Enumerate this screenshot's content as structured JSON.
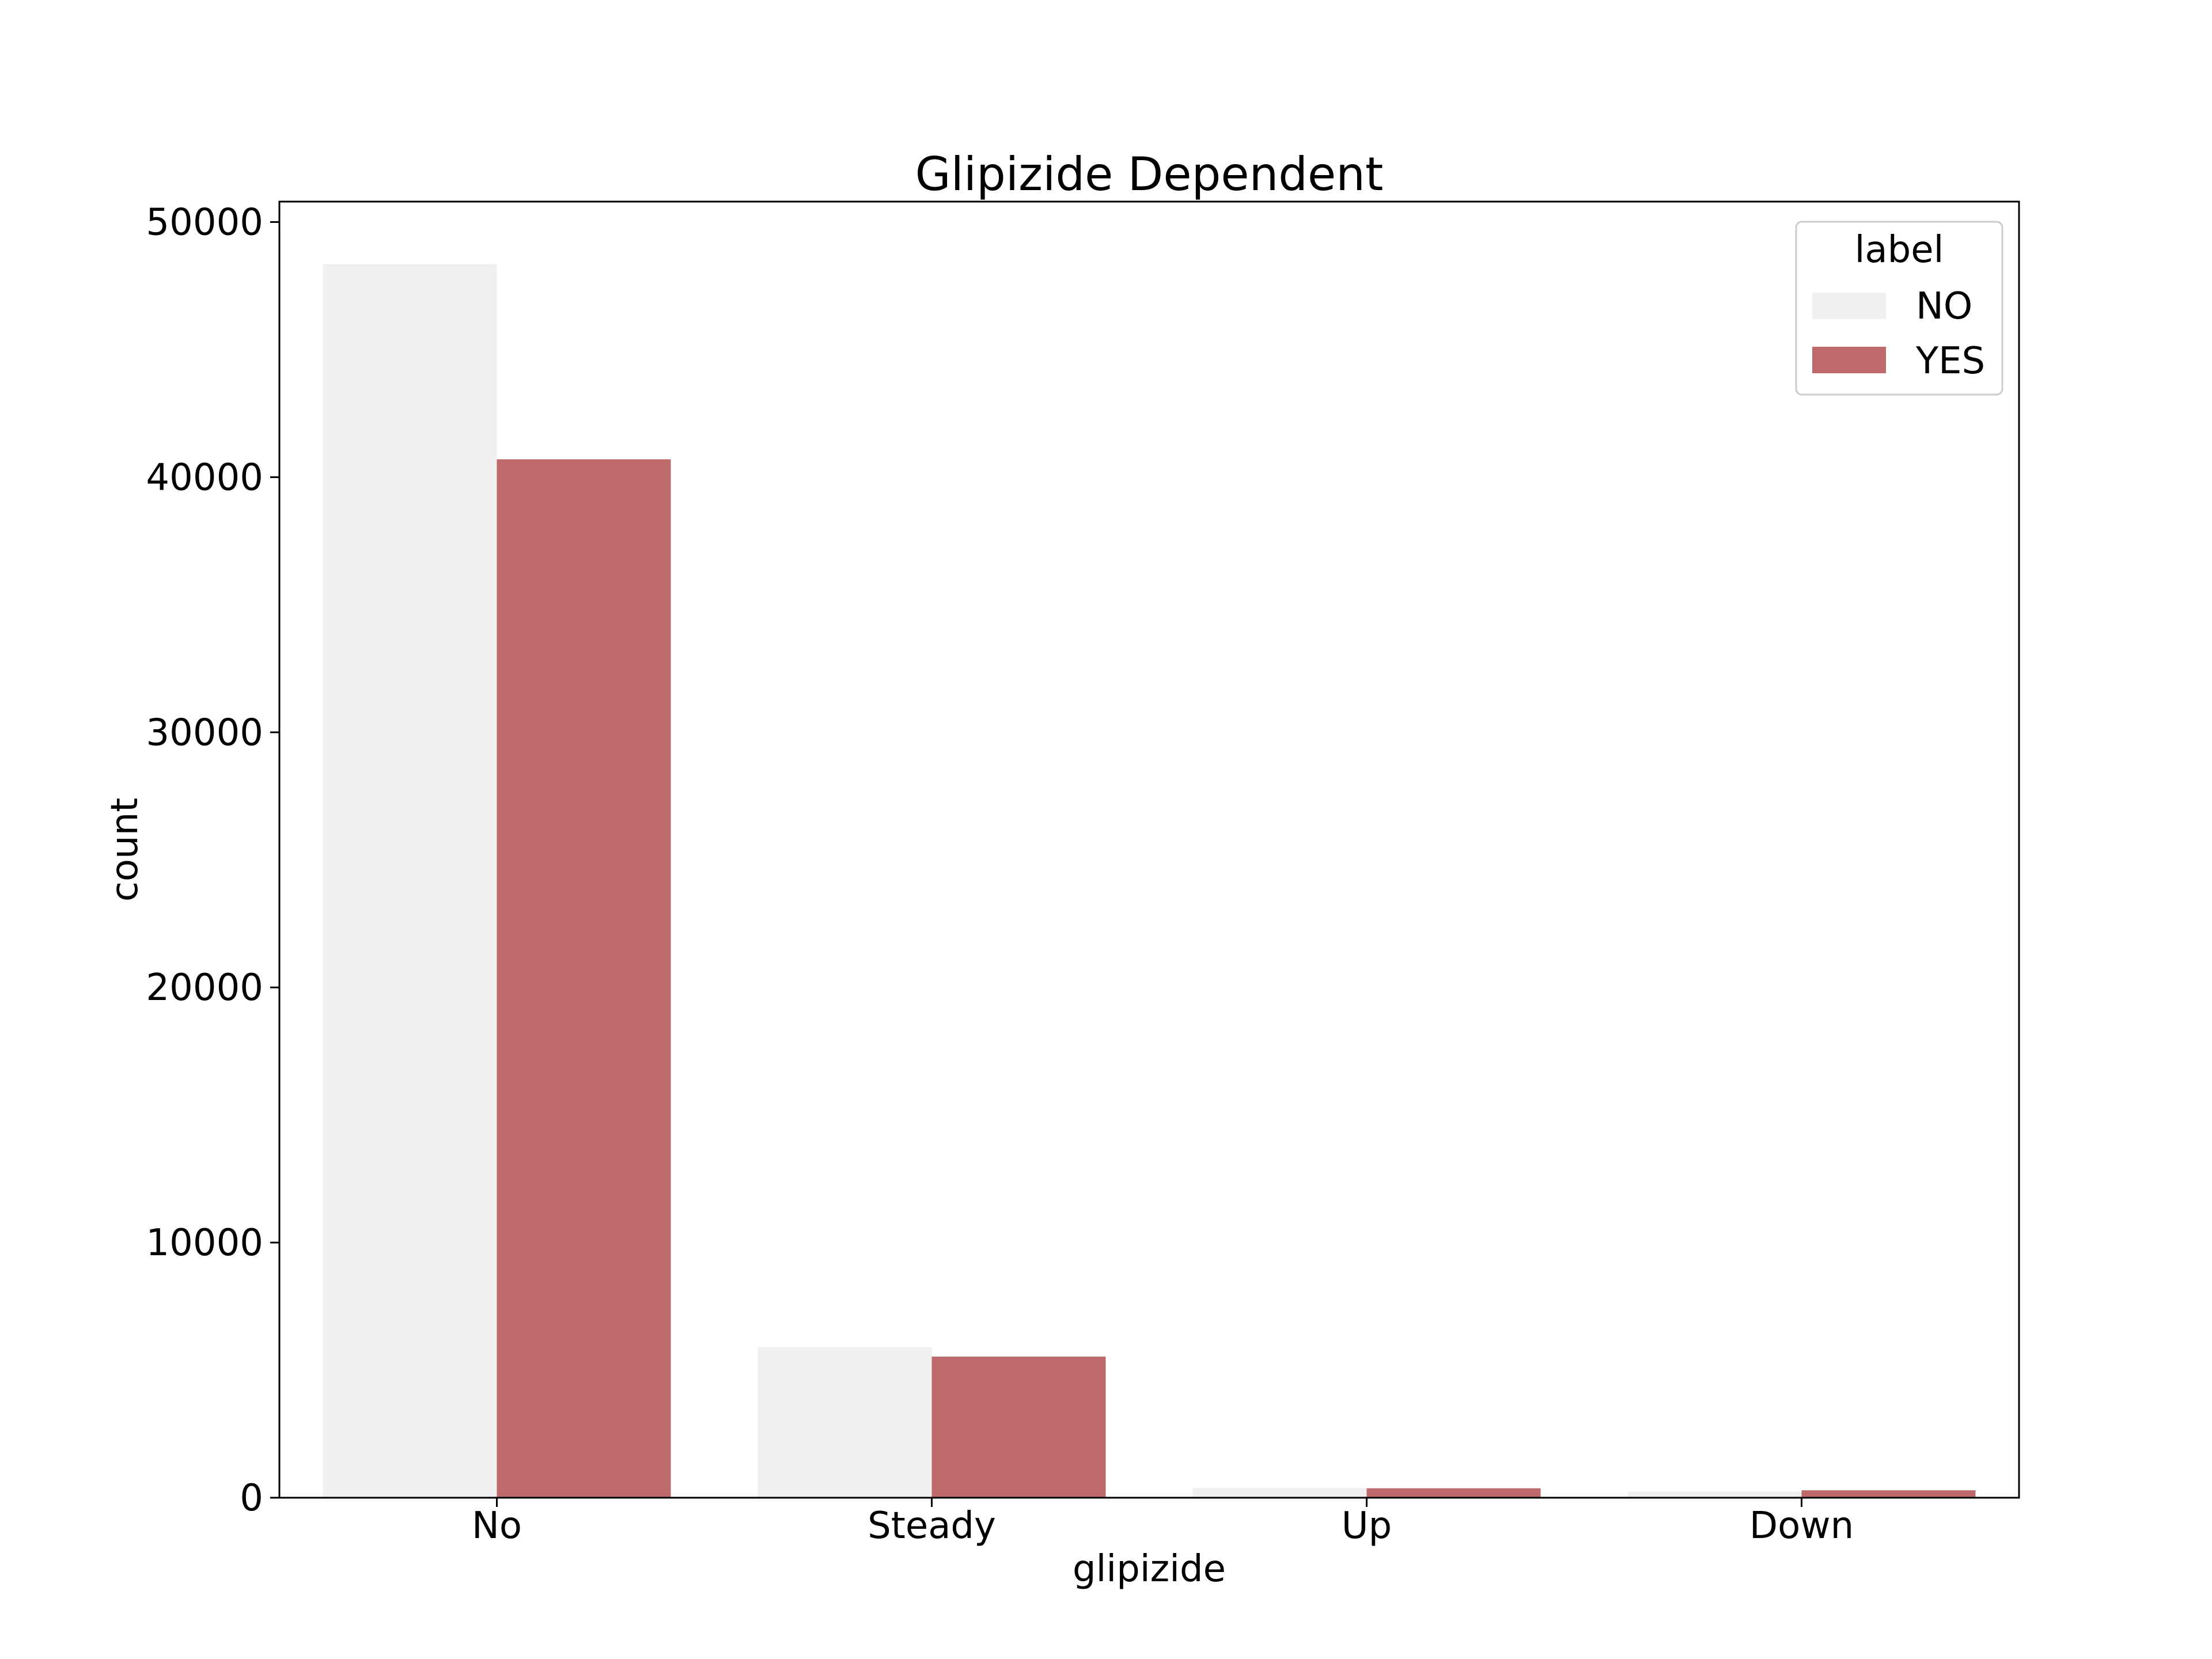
{
  "chart_data": {
    "type": "bar",
    "title": "Glipizide Dependent",
    "xlabel": "glipizide",
    "ylabel": "count",
    "categories": [
      "No",
      "Steady",
      "Up",
      "Down"
    ],
    "series": [
      {
        "name": "NO",
        "color": "#f0f0f0",
        "values": [
          48350,
          5900,
          380,
          240
        ]
      },
      {
        "name": "YES",
        "color": "#be6a6c",
        "values": [
          40700,
          5530,
          370,
          290
        ]
      }
    ],
    "ylim": [
      0,
      50800
    ],
    "yticks": [
      0,
      10000,
      20000,
      30000,
      40000,
      50000
    ],
    "ytick_labels": [
      "0",
      "10000",
      "20000",
      "30000",
      "40000",
      "50000"
    ],
    "grid": false,
    "legend": {
      "title": "label",
      "position": "top-right"
    }
  }
}
